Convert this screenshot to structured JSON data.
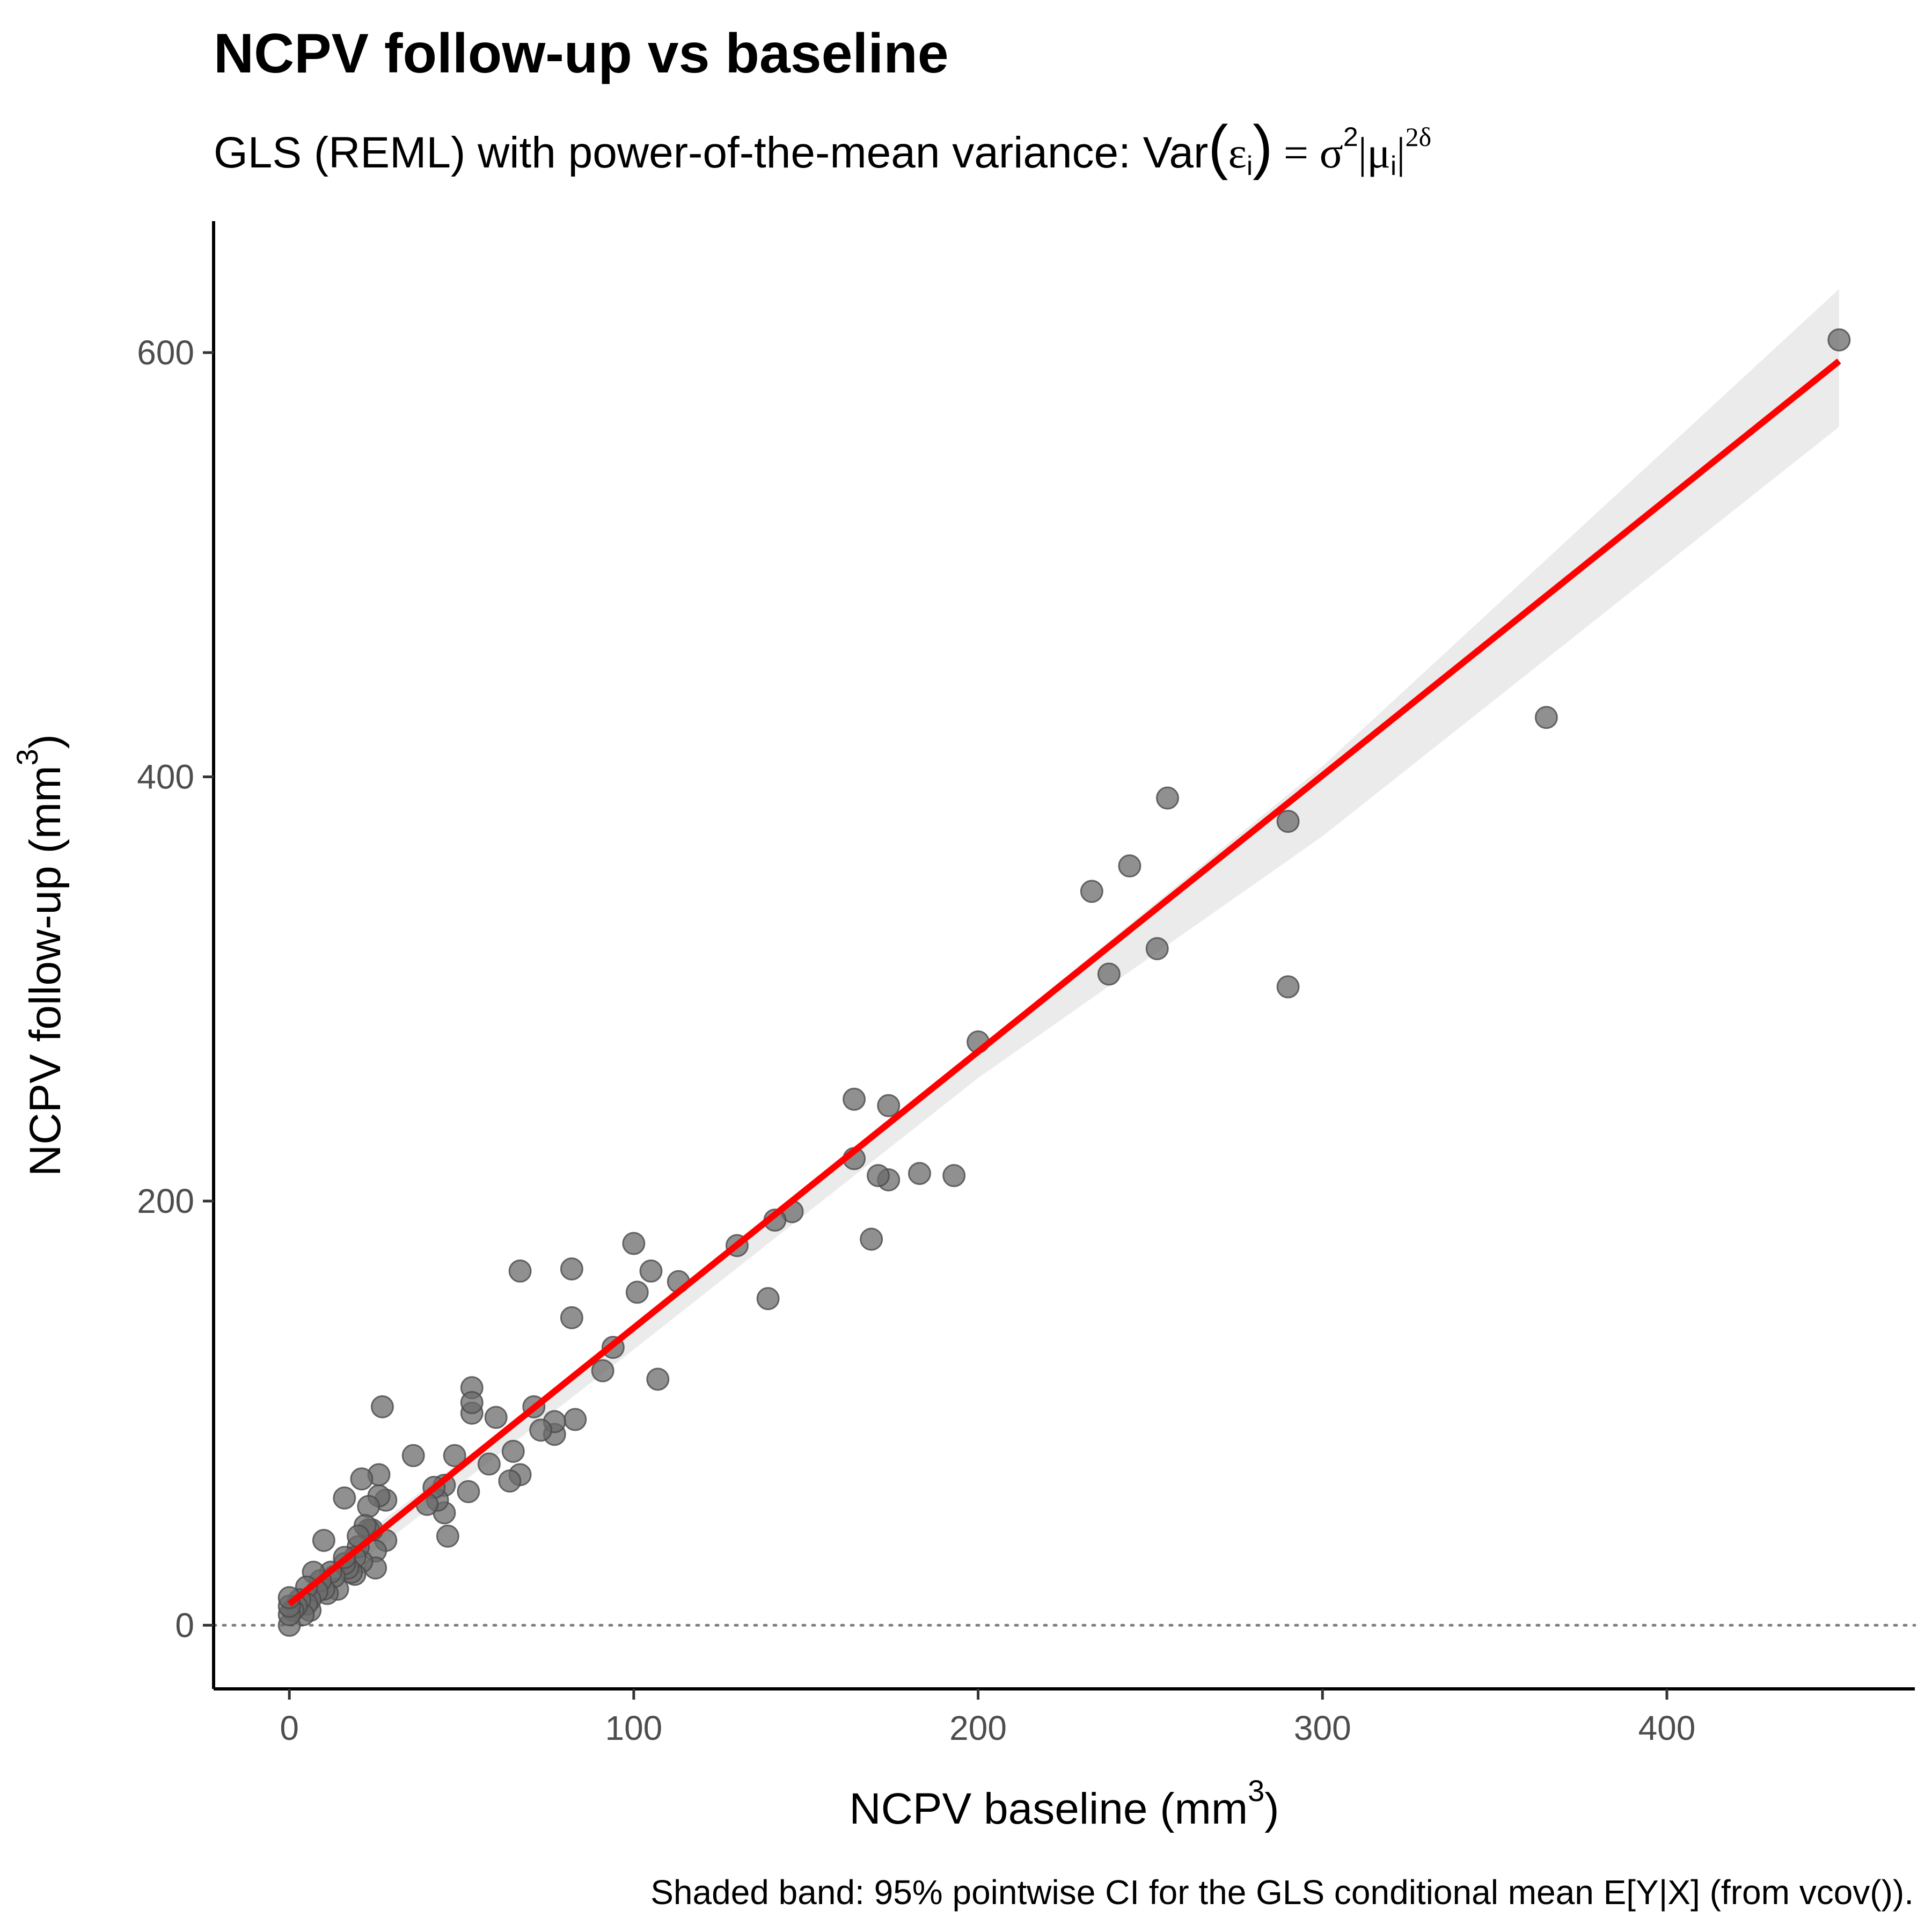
{
  "chart_data": {
    "type": "scatter",
    "title": "NCPV follow-up vs baseline",
    "subtitle_parts": {
      "prefix": "GLS (REML) with power-of-the-mean variance:  Var",
      "epsilon": "ε",
      "sub_i": "i",
      "equals_sigma": " = σ",
      "sup_2": "2",
      "mu_part": "|μ",
      "abs_close": "|",
      "sup_2delta": "2δ"
    },
    "xlabel": "NCPV baseline (mm",
    "xlabel_sup": "3",
    "xlabel_close": ")",
    "ylabel": "NCPV follow-up (mm",
    "ylabel_sup": "3",
    "ylabel_close": ")",
    "caption": "Shaded band: 95% pointwise CI for the GLS conditional mean E[Y|X] (from vcov()).",
    "xlim": [
      -22,
      472
    ],
    "ylim": [
      -30,
      662
    ],
    "x_ticks": [
      0,
      100,
      200,
      300,
      400
    ],
    "x_tick_labels": [
      "0",
      "100",
      "200",
      "300",
      "400"
    ],
    "y_ticks": [
      0,
      200,
      400,
      600
    ],
    "y_tick_labels": [
      "0",
      "200",
      "400",
      "600"
    ],
    "reference_line_y": 0,
    "grid": false,
    "colors": {
      "points": "#6b6b6b",
      "fit_line": "#ff0000",
      "ci_band": "#ebebeb",
      "reference_line": "#7f7f7f"
    },
    "fit_line": {
      "x": [
        0,
        450
      ],
      "y": [
        10,
        596
      ]
    },
    "ci_band": {
      "x": [
        0,
        100,
        200,
        300,
        450
      ],
      "lower": [
        4,
        130,
        258,
        372,
        565
      ],
      "upper": [
        16,
        139,
        272,
        405,
        630
      ]
    },
    "points": {
      "x": [
        450,
        365,
        290,
        290,
        255,
        252,
        244,
        238,
        233,
        200,
        193,
        183,
        174,
        174,
        171,
        169,
        164,
        164,
        146,
        141,
        139,
        130,
        113,
        107,
        105,
        101,
        100,
        94,
        91,
        83,
        82,
        82,
        77,
        77,
        73,
        71,
        67,
        67,
        65,
        64,
        60,
        58,
        53,
        53,
        53,
        52,
        48,
        46,
        45,
        45,
        43,
        42,
        40,
        36,
        28,
        28,
        27,
        26,
        26,
        25,
        25,
        24,
        23,
        23,
        22,
        21,
        21,
        20,
        20,
        19,
        19,
        18,
        17,
        16,
        16,
        16,
        14,
        13,
        12,
        11,
        10,
        10,
        9,
        8,
        7,
        6,
        6,
        5,
        5,
        4,
        3,
        2,
        1,
        0,
        0,
        0,
        0
      ],
      "y": [
        606,
        428,
        379,
        301,
        390,
        319,
        358,
        307,
        346,
        275,
        212,
        213,
        245,
        210,
        212,
        182,
        248,
        220,
        195,
        191,
        154,
        179,
        162,
        116,
        167,
        157,
        180,
        131,
        120,
        97,
        168,
        145,
        90,
        96,
        92,
        103,
        167,
        71,
        82,
        68,
        98,
        76,
        100,
        112,
        105,
        63,
        80,
        42,
        66,
        53,
        59,
        65,
        57,
        80,
        59,
        40,
        103,
        61,
        71,
        35,
        27,
        45,
        56,
        45,
        47,
        69,
        30,
        37,
        42,
        24,
        32,
        25,
        27,
        60,
        29,
        32,
        17,
        23,
        25,
        15,
        40,
        17,
        21,
        16,
        25,
        12,
        7,
        18,
        10,
        5,
        12,
        9,
        7,
        0,
        5,
        9,
        13
      ]
    }
  }
}
